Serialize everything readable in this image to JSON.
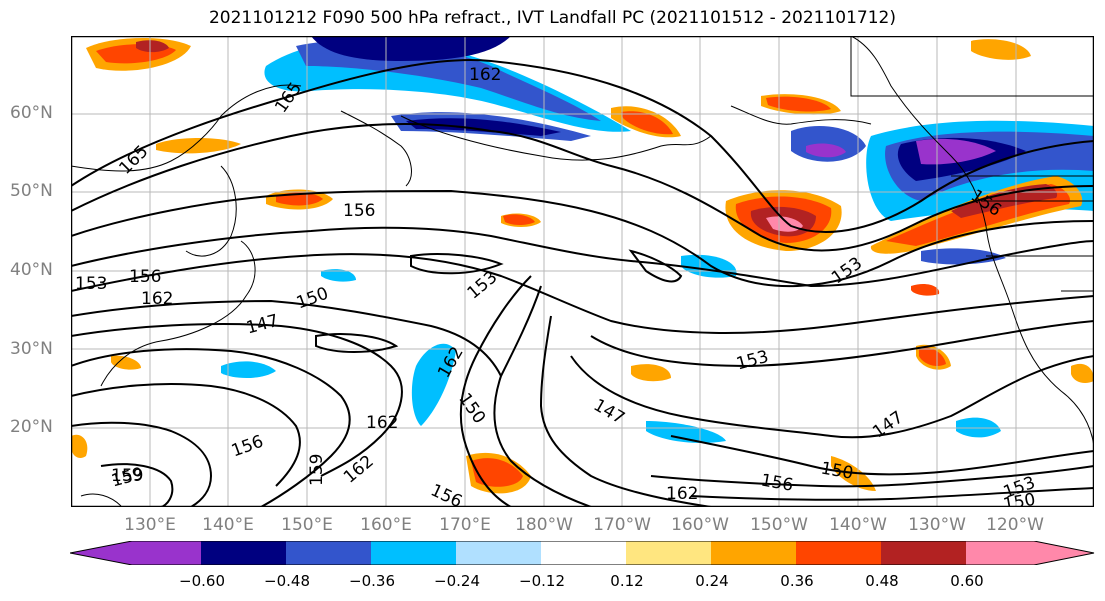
{
  "title": "2021101212 F090 500 hPa refract., IVT Landfall PC (2021101512 - 2021101712)",
  "lat_labels": [
    "60°N",
    "50°N",
    "40°N",
    "30°N",
    "20°N"
  ],
  "lon_labels": [
    "130°E",
    "140°E",
    "150°E",
    "160°E",
    "170°E",
    "180°W",
    "170°W",
    "160°W",
    "150°W",
    "140°W",
    "130°W",
    "120°W"
  ],
  "contour_labels": [
    "162",
    "165",
    "165",
    "156",
    "156",
    "153",
    "156",
    "162",
    "150",
    "147",
    "153",
    "153",
    "153",
    "162",
    "150",
    "162",
    "159",
    "162",
    "147",
    "147",
    "156",
    "159",
    "156",
    "150",
    "156",
    "153",
    "150",
    "159",
    "162"
  ],
  "colorbar": {
    "ticks": [
      "−0.60",
      "−0.48",
      "−0.36",
      "−0.24",
      "−0.12",
      "0.12",
      "0.24",
      "0.36",
      "0.48",
      "0.60"
    ],
    "colors": [
      "#9933cc",
      "#000080",
      "#3355cc",
      "#00bfff",
      "#b0e0ff",
      "#ffffff",
      "#ffe680",
      "#ffa500",
      "#ff4500",
      "#b22222",
      "#ff88aa"
    ]
  }
}
